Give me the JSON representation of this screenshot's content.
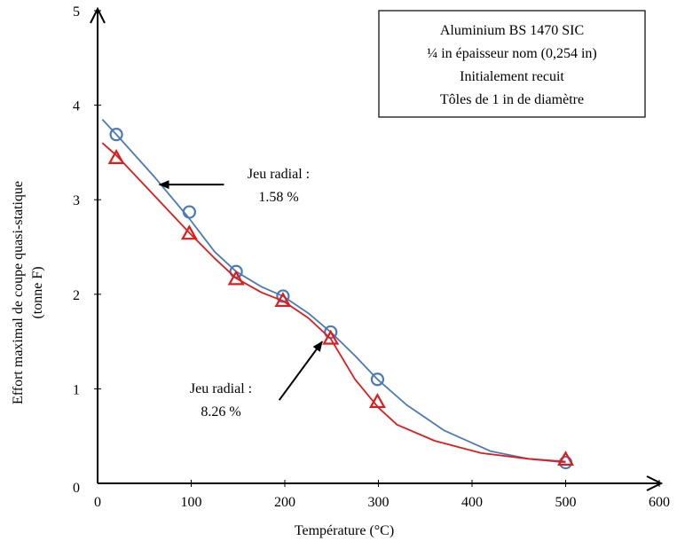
{
  "chart_data": {
    "type": "line",
    "xlabel": "Température (°C)",
    "ylabel_lines": [
      "Effort maximal de coupe quasi-statique",
      "(tonne F)"
    ],
    "xlim": [
      0,
      600
    ],
    "ylim": [
      0,
      5
    ],
    "x_ticks": [
      0,
      100,
      200,
      300,
      400,
      500,
      600
    ],
    "y_ticks": [
      0,
      1,
      2,
      3,
      4,
      5
    ],
    "grid": false,
    "info_box": [
      "Aluminium BS 1470 SIC",
      "¼ in épaisseur nom (0,254 in)",
      "Initialement recuit",
      "Tôles de 1 in de diamètre"
    ],
    "series": [
      {
        "marker": "circle",
        "color": "#4a7ab8",
        "points": [
          {
            "x": 20,
            "y": 3.69
          },
          {
            "x": 98,
            "y": 2.87
          },
          {
            "x": 148,
            "y": 2.24
          },
          {
            "x": 198,
            "y": 1.98
          },
          {
            "x": 249,
            "y": 1.6
          },
          {
            "x": 299,
            "y": 1.1
          },
          {
            "x": 500,
            "y": 0.22
          }
        ],
        "curve": [
          {
            "x": 5,
            "y": 3.85
          },
          {
            "x": 20,
            "y": 3.69
          },
          {
            "x": 60,
            "y": 3.25
          },
          {
            "x": 98,
            "y": 2.8
          },
          {
            "x": 125,
            "y": 2.45
          },
          {
            "x": 148,
            "y": 2.24
          },
          {
            "x": 175,
            "y": 2.08
          },
          {
            "x": 198,
            "y": 1.98
          },
          {
            "x": 225,
            "y": 1.8
          },
          {
            "x": 249,
            "y": 1.6
          },
          {
            "x": 275,
            "y": 1.35
          },
          {
            "x": 299,
            "y": 1.1
          },
          {
            "x": 330,
            "y": 0.83
          },
          {
            "x": 370,
            "y": 0.56
          },
          {
            "x": 420,
            "y": 0.34
          },
          {
            "x": 460,
            "y": 0.26
          },
          {
            "x": 500,
            "y": 0.22
          }
        ]
      },
      {
        "marker": "triangle",
        "color": "#e01b1b",
        "points": [
          {
            "x": 20,
            "y": 3.44
          },
          {
            "x": 98,
            "y": 2.64
          },
          {
            "x": 148,
            "y": 2.16
          },
          {
            "x": 198,
            "y": 1.93
          },
          {
            "x": 249,
            "y": 1.53
          },
          {
            "x": 299,
            "y": 0.86
          },
          {
            "x": 500,
            "y": 0.25
          }
        ],
        "curve": [
          {
            "x": 5,
            "y": 3.6
          },
          {
            "x": 20,
            "y": 3.47
          },
          {
            "x": 60,
            "y": 3.05
          },
          {
            "x": 98,
            "y": 2.65
          },
          {
            "x": 125,
            "y": 2.38
          },
          {
            "x": 148,
            "y": 2.17
          },
          {
            "x": 175,
            "y": 2.02
          },
          {
            "x": 198,
            "y": 1.93
          },
          {
            "x": 225,
            "y": 1.75
          },
          {
            "x": 249,
            "y": 1.53
          },
          {
            "x": 275,
            "y": 1.1
          },
          {
            "x": 300,
            "y": 0.8
          },
          {
            "x": 320,
            "y": 0.62
          },
          {
            "x": 360,
            "y": 0.45
          },
          {
            "x": 410,
            "y": 0.32
          },
          {
            "x": 460,
            "y": 0.26
          },
          {
            "x": 500,
            "y": 0.23
          }
        ]
      }
    ],
    "annotations": [
      {
        "lines": [
          "Jeu radial :",
          "1.58 %"
        ],
        "arrow_from": {
          "x": 135,
          "y": 3.16
        },
        "arrow_to": {
          "x": 66,
          "y": 3.16
        }
      },
      {
        "lines": [
          "Jeu radial :",
          "8.26 %"
        ],
        "arrow_from": {
          "x": 194,
          "y": 0.88
        },
        "arrow_to": {
          "x": 240,
          "y": 1.5
        }
      }
    ]
  }
}
